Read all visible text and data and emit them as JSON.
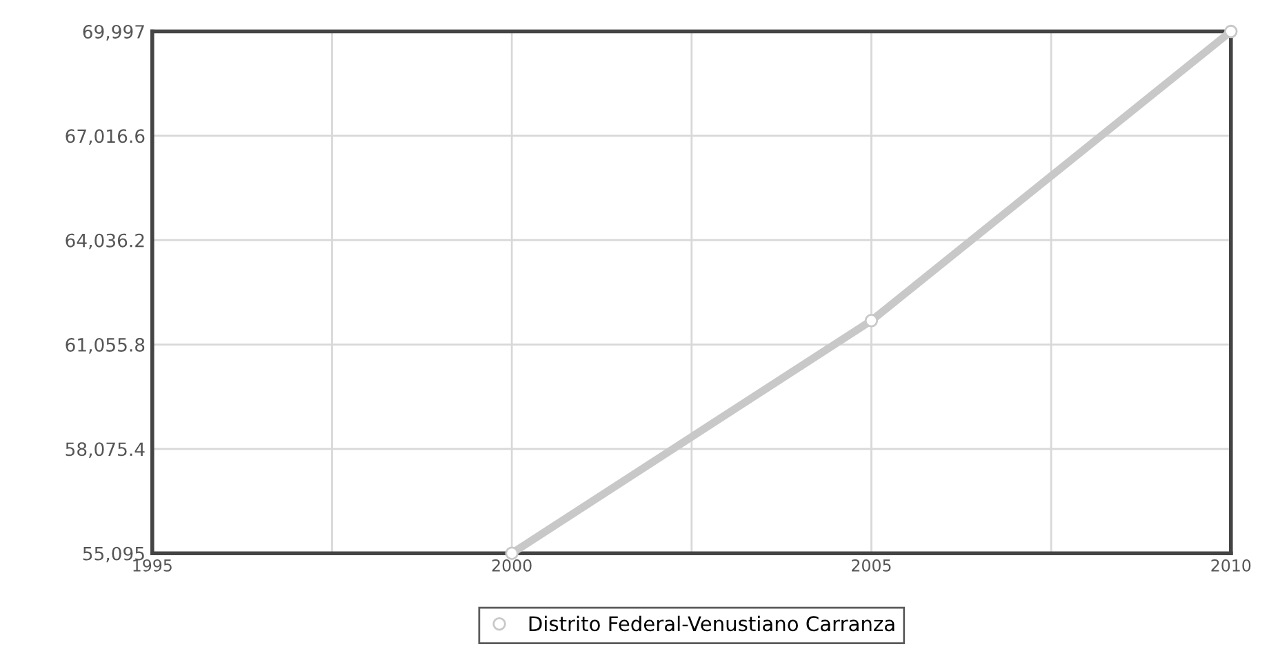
{
  "chart_data": {
    "type": "line",
    "x": [
      2000,
      2005,
      2010
    ],
    "series": [
      {
        "name": "Distrito Federal-Venustiano Carranza",
        "color": "#c8c8c8",
        "values": [
          55095,
          61740,
          69997
        ]
      }
    ],
    "xlim": [
      1995,
      2010
    ],
    "xticks": [
      1995,
      {
        "value": 1997.5,
        "label": null
      },
      2000,
      {
        "value": 2002.5,
        "label": null
      },
      2005,
      {
        "value": 2007.5,
        "label": null
      },
      2010
    ],
    "ylim": [
      55095,
      69997
    ],
    "yticks": [
      {
        "value": 55095,
        "label": "55,095"
      },
      {
        "value": 58075.4,
        "label": "58,075.4"
      },
      {
        "value": 61055.8,
        "label": "61,055.8"
      },
      {
        "value": 64036.2,
        "label": "64,036.2"
      },
      {
        "value": 67016.6,
        "label": "67,016.6"
      },
      {
        "value": 69997,
        "label": "69,997"
      }
    ],
    "grid": true,
    "legend": "bottom",
    "marker": "circle",
    "line_style": "solid"
  }
}
